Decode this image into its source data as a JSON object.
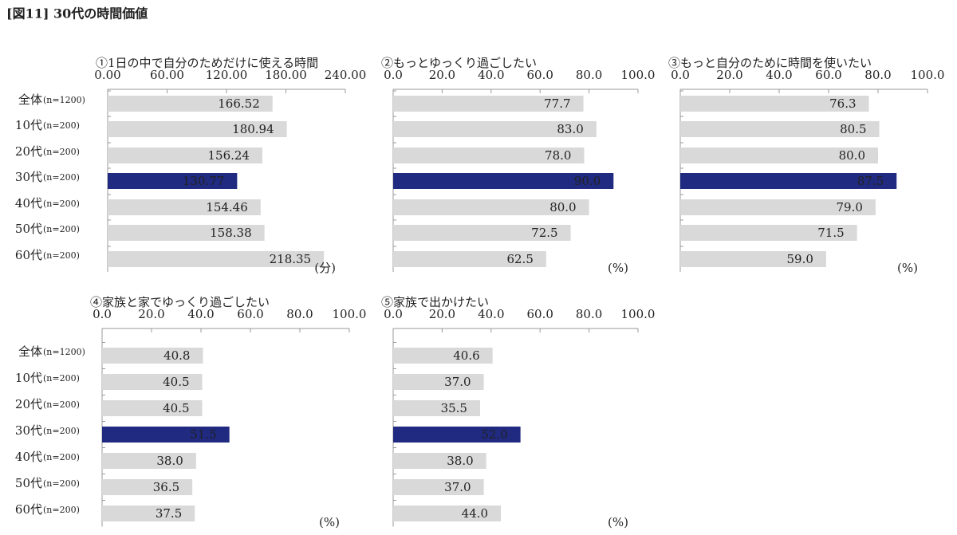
{
  "title": "[図11] 30代の時間価値",
  "chart_data": [
    {
      "type": "bar",
      "orientation": "horizontal",
      "title": "①1日の中で自分のためだけに使える時間",
      "categories": [
        "全体",
        "10代",
        "20代",
        "30代",
        "40代",
        "50代",
        "60代"
      ],
      "n_labels": [
        "(n=1200)",
        "(n=200)",
        "(n=200)",
        "(n=200)",
        "(n=200)",
        "(n=200)",
        "(n=200)"
      ],
      "values": [
        166.52,
        180.94,
        156.24,
        130.77,
        154.46,
        158.38,
        218.35
      ],
      "value_labels": [
        "166.52",
        "180.94",
        "156.24",
        "130.77",
        "154.46",
        "158.38",
        "218.35"
      ],
      "xlim": [
        0,
        240
      ],
      "xticks": [
        {
          "value": 0,
          "label": "0.00"
        },
        {
          "value": 60,
          "label": "60.00"
        },
        {
          "value": 120,
          "label": "120.00"
        },
        {
          "value": 180,
          "label": "180.00"
        },
        {
          "value": 240,
          "label": "240.00"
        }
      ],
      "unit_label": "(分)",
      "color": "#d9d9d9",
      "highlight": 3,
      "highlight_color": "#1f2a80"
    },
    {
      "type": "bar",
      "orientation": "horizontal",
      "title": "②もっとゆっくり過ごしたい",
      "values": [
        77.7,
        83.0,
        78.0,
        90.0,
        80.0,
        72.5,
        62.5
      ],
      "value_labels": [
        "77.7",
        "83.0",
        "78.0",
        "90.0",
        "80.0",
        "72.5",
        "62.5"
      ],
      "xlim": [
        0,
        100
      ],
      "xticks": [
        {
          "value": 0,
          "label": "0.0"
        },
        {
          "value": 20,
          "label": "20.0"
        },
        {
          "value": 40,
          "label": "40.0"
        },
        {
          "value": 60,
          "label": "60.0"
        },
        {
          "value": 80,
          "label": "80.0"
        },
        {
          "value": 100,
          "label": "100.0"
        }
      ],
      "unit_label": "(%)",
      "color": "#d9d9d9",
      "highlight": 3,
      "highlight_color": "#1f2a80"
    },
    {
      "type": "bar",
      "orientation": "horizontal",
      "title": "③もっと自分のために時間を使いたい",
      "values": [
        76.3,
        80.5,
        80.0,
        87.5,
        79.0,
        71.5,
        59.0
      ],
      "value_labels": [
        "76.3",
        "80.5",
        "80.0",
        "87.5",
        "79.0",
        "71.5",
        "59.0"
      ],
      "xlim": [
        0,
        100
      ],
      "xticks": [
        {
          "value": 0,
          "label": "0.0"
        },
        {
          "value": 20,
          "label": "20.0"
        },
        {
          "value": 40,
          "label": "40.0"
        },
        {
          "value": 60,
          "label": "60.0"
        },
        {
          "value": 80,
          "label": "80.0"
        },
        {
          "value": 100,
          "label": "100.0"
        }
      ],
      "unit_label": "(%)",
      "color": "#d9d9d9",
      "highlight": 3,
      "highlight_color": "#1f2a80"
    },
    {
      "type": "bar",
      "orientation": "horizontal",
      "title": "④家族と家でゆっくり過ごしたい",
      "categories": [
        "全体",
        "10代",
        "20代",
        "30代",
        "40代",
        "50代",
        "60代"
      ],
      "n_labels": [
        "(n=1200)",
        "(n=200)",
        "(n=200)",
        "(n=200)",
        "(n=200)",
        "(n=200)",
        "(n=200)"
      ],
      "values": [
        40.8,
        40.5,
        40.5,
        51.5,
        38.0,
        36.5,
        37.5
      ],
      "value_labels": [
        "40.8",
        "40.5",
        "40.5",
        "51.5",
        "38.0",
        "36.5",
        "37.5"
      ],
      "xlim": [
        0,
        100
      ],
      "xticks": [
        {
          "value": 0,
          "label": "0.0"
        },
        {
          "value": 20,
          "label": "20.0"
        },
        {
          "value": 40,
          "label": "40.0"
        },
        {
          "value": 60,
          "label": "60.0"
        },
        {
          "value": 80,
          "label": "80.0"
        },
        {
          "value": 100,
          "label": "100.0"
        }
      ],
      "unit_label": "(%)",
      "color": "#d9d9d9",
      "highlight": 3,
      "highlight_color": "#1f2a80"
    },
    {
      "type": "bar",
      "orientation": "horizontal",
      "title": "⑤家族で出かけたい",
      "values": [
        40.6,
        37.0,
        35.5,
        52.0,
        38.0,
        37.0,
        44.0
      ],
      "value_labels": [
        "40.6",
        "37.0",
        "35.5",
        "52.0",
        "38.0",
        "37.0",
        "44.0"
      ],
      "xlim": [
        0,
        100
      ],
      "xticks": [
        {
          "value": 0,
          "label": "0.0"
        },
        {
          "value": 20,
          "label": "20.0"
        },
        {
          "value": 40,
          "label": "40.0"
        },
        {
          "value": 60,
          "label": "60.0"
        },
        {
          "value": 80,
          "label": "80.0"
        },
        {
          "value": 100,
          "label": "100.0"
        }
      ],
      "unit_label": "(%)",
      "color": "#d9d9d9",
      "highlight": 3,
      "highlight_color": "#1f2a80"
    }
  ]
}
